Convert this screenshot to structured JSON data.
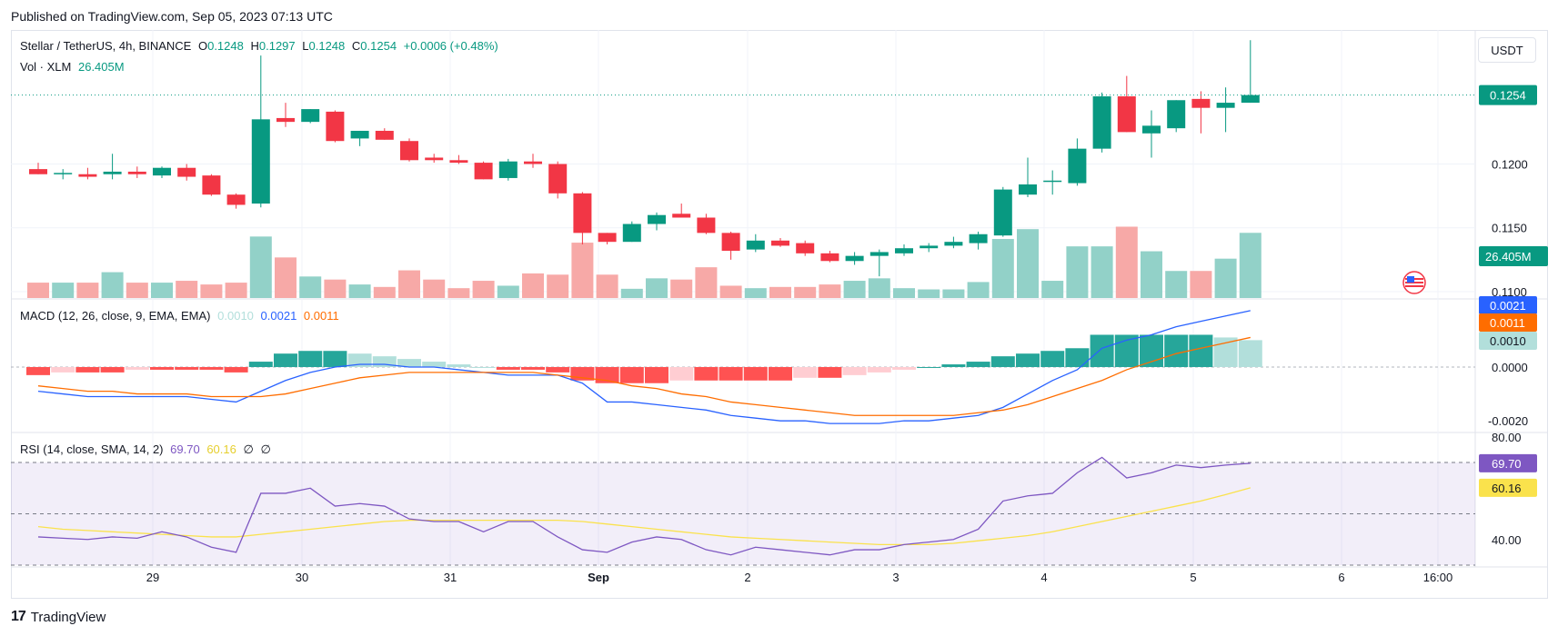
{
  "published": "Published on TradingView.com, Sep 05, 2023 07:13 UTC",
  "header": {
    "symbol": "Stellar / TetherUS, 4h, BINANCE",
    "o_label": "O",
    "o_value": "0.1248",
    "h_label": "H",
    "h_value": "0.1297",
    "l_label": "L",
    "l_value": "0.1248",
    "c_label": "C",
    "c_value": "0.1254",
    "change": "+0.0006 (+0.48%)",
    "vol_label": "Vol · XLM",
    "vol_value": "26.405M"
  },
  "currency_button": "USDT",
  "macd_legend": {
    "label": "MACD (12, 26, close, 9, EMA, EMA)",
    "hist": "0.0010",
    "macd": "0.0021",
    "signal": "0.0011"
  },
  "rsi_legend": {
    "label": "RSI (14, close, SMA, 14, 2)",
    "rsi": "69.70",
    "sma": "60.16",
    "extra1": "∅",
    "extra2": "∅"
  },
  "footer": {
    "brand": "TradingView",
    "logo": "TV-logo-icon"
  },
  "colors": {
    "up": "#089981",
    "down": "#f23645",
    "up_vol": "#92d1c8",
    "down_vol": "#f7a9a7",
    "macd_line": "#2962ff",
    "signal_line": "#ff6d00",
    "rsi_line": "#7e57c2",
    "rsi_sma": "#fae24c"
  },
  "chart_data": [
    {
      "type": "candlestick",
      "title": "Stellar / TetherUS, 4h, BINANCE",
      "y_axis_labels": [
        "0.1200",
        "0.1150",
        "0.1100"
      ],
      "ylim": [
        0.1095,
        0.1305
      ],
      "last_price_label": "0.1254",
      "volume_label": "26.405M",
      "x_axis_labels": [
        "29",
        "30",
        "31",
        "Sep",
        "2",
        "3",
        "4",
        "5",
        "6",
        "16:00"
      ],
      "candles": [
        {
          "o": 0.1196,
          "h": 0.1201,
          "l": 0.1192,
          "c": 0.1192
        },
        {
          "o": 0.1193,
          "h": 0.1196,
          "l": 0.1188,
          "c": 0.1193
        },
        {
          "o": 0.1192,
          "h": 0.1197,
          "l": 0.1188,
          "c": 0.119
        },
        {
          "o": 0.1192,
          "h": 0.1208,
          "l": 0.1188,
          "c": 0.1194
        },
        {
          "o": 0.1194,
          "h": 0.1198,
          "l": 0.1189,
          "c": 0.1192
        },
        {
          "o": 0.1191,
          "h": 0.1198,
          "l": 0.1189,
          "c": 0.1197
        },
        {
          "o": 0.1197,
          "h": 0.12,
          "l": 0.1187,
          "c": 0.119
        },
        {
          "o": 0.1191,
          "h": 0.1192,
          "l": 0.1175,
          "c": 0.1176
        },
        {
          "o": 0.1176,
          "h": 0.1177,
          "l": 0.1165,
          "c": 0.1168
        },
        {
          "o": 0.1169,
          "h": 0.1285,
          "l": 0.1166,
          "c": 0.1235
        },
        {
          "o": 0.1236,
          "h": 0.1248,
          "l": 0.1229,
          "c": 0.1233
        },
        {
          "o": 0.1233,
          "h": 0.1243,
          "l": 0.1232,
          "c": 0.1243
        },
        {
          "o": 0.1241,
          "h": 0.1242,
          "l": 0.1217,
          "c": 0.1218
        },
        {
          "o": 0.122,
          "h": 0.1226,
          "l": 0.1214,
          "c": 0.1226
        },
        {
          "o": 0.1226,
          "h": 0.1228,
          "l": 0.1219,
          "c": 0.1219
        },
        {
          "o": 0.1218,
          "h": 0.122,
          "l": 0.1202,
          "c": 0.1203
        },
        {
          "o": 0.1205,
          "h": 0.1208,
          "l": 0.1201,
          "c": 0.1203
        },
        {
          "o": 0.1203,
          "h": 0.1207,
          "l": 0.12,
          "c": 0.1201
        },
        {
          "o": 0.1201,
          "h": 0.1202,
          "l": 0.1188,
          "c": 0.1188
        },
        {
          "o": 0.1189,
          "h": 0.1204,
          "l": 0.1187,
          "c": 0.1202
        },
        {
          "o": 0.1202,
          "h": 0.1208,
          "l": 0.1197,
          "c": 0.12
        },
        {
          "o": 0.12,
          "h": 0.1202,
          "l": 0.1173,
          "c": 0.1177
        },
        {
          "o": 0.1177,
          "h": 0.1178,
          "l": 0.1137,
          "c": 0.1146
        },
        {
          "o": 0.1146,
          "h": 0.1146,
          "l": 0.1137,
          "c": 0.1139
        },
        {
          "o": 0.1139,
          "h": 0.1155,
          "l": 0.1139,
          "c": 0.1153
        },
        {
          "o": 0.1153,
          "h": 0.1162,
          "l": 0.1148,
          "c": 0.116
        },
        {
          "o": 0.1161,
          "h": 0.1169,
          "l": 0.1158,
          "c": 0.1158
        },
        {
          "o": 0.1158,
          "h": 0.1161,
          "l": 0.1145,
          "c": 0.1146
        },
        {
          "o": 0.1146,
          "h": 0.1147,
          "l": 0.1125,
          "c": 0.1132
        },
        {
          "o": 0.1133,
          "h": 0.1145,
          "l": 0.1131,
          "c": 0.114
        },
        {
          "o": 0.114,
          "h": 0.1142,
          "l": 0.1135,
          "c": 0.1136
        },
        {
          "o": 0.1138,
          "h": 0.114,
          "l": 0.1128,
          "c": 0.113
        },
        {
          "o": 0.113,
          "h": 0.1132,
          "l": 0.1123,
          "c": 0.1124
        },
        {
          "o": 0.1124,
          "h": 0.1131,
          "l": 0.1121,
          "c": 0.1128
        },
        {
          "o": 0.1128,
          "h": 0.1133,
          "l": 0.1112,
          "c": 0.1131
        },
        {
          "o": 0.113,
          "h": 0.1137,
          "l": 0.1128,
          "c": 0.1134
        },
        {
          "o": 0.1134,
          "h": 0.1138,
          "l": 0.1131,
          "c": 0.1136
        },
        {
          "o": 0.1136,
          "h": 0.1143,
          "l": 0.1134,
          "c": 0.1139
        },
        {
          "o": 0.1138,
          "h": 0.1147,
          "l": 0.1133,
          "c": 0.1145
        },
        {
          "o": 0.1144,
          "h": 0.1182,
          "l": 0.1143,
          "c": 0.118
        },
        {
          "o": 0.1176,
          "h": 0.1205,
          "l": 0.1174,
          "c": 0.1184
        },
        {
          "o": 0.1186,
          "h": 0.1195,
          "l": 0.1176,
          "c": 0.1187
        },
        {
          "o": 0.1185,
          "h": 0.122,
          "l": 0.1183,
          "c": 0.1212
        },
        {
          "o": 0.1212,
          "h": 0.1256,
          "l": 0.1209,
          "c": 0.1253
        },
        {
          "o": 0.1253,
          "h": 0.1269,
          "l": 0.1225,
          "c": 0.1225
        },
        {
          "o": 0.1224,
          "h": 0.1242,
          "l": 0.1205,
          "c": 0.123
        },
        {
          "o": 0.1228,
          "h": 0.125,
          "l": 0.1225,
          "c": 0.125
        },
        {
          "o": 0.1251,
          "h": 0.1257,
          "l": 0.1224,
          "c": 0.1244
        },
        {
          "o": 0.1244,
          "h": 0.126,
          "l": 0.1225,
          "c": 0.1248
        },
        {
          "o": 0.1248,
          "h": 0.1297,
          "l": 0.1248,
          "c": 0.1254
        }
      ],
      "volume_relative": [
        0.25,
        0.25,
        0.25,
        0.42,
        0.25,
        0.25,
        0.28,
        0.22,
        0.25,
        1.0,
        0.66,
        0.35,
        0.3,
        0.22,
        0.18,
        0.45,
        0.3,
        0.16,
        0.28,
        0.2,
        0.4,
        0.38,
        0.9,
        0.38,
        0.15,
        0.32,
        0.3,
        0.5,
        0.2,
        0.16,
        0.18,
        0.18,
        0.22,
        0.28,
        0.32,
        0.16,
        0.14,
        0.14,
        0.26,
        0.96,
        1.12,
        0.28,
        0.84,
        0.84,
        1.16,
        0.76,
        0.44,
        0.44,
        0.64,
        1.06
      ]
    },
    {
      "type": "line",
      "title": "MACD (12, 26, close, 9, EMA, EMA)",
      "y_axis_labels": [
        "0.0021",
        "0.0011",
        "0.0010",
        "0.0000",
        "-0.0020"
      ],
      "ylim": [
        -0.0024,
        0.0025
      ],
      "series": [
        {
          "name": "MACD",
          "values": [
            -0.0009,
            -0.001,
            -0.0011,
            -0.0011,
            -0.0011,
            -0.0011,
            -0.0011,
            -0.0012,
            -0.0013,
            -0.0009,
            -0.0005,
            -0.0002,
            0.0,
            0.0001,
            0.0001,
            0.0,
            0.0,
            -0.0001,
            -0.0002,
            -0.0003,
            -0.0003,
            -0.0003,
            -0.0006,
            -0.0013,
            -0.0013,
            -0.0014,
            -0.0015,
            -0.0016,
            -0.0018,
            -0.0019,
            -0.002,
            -0.002,
            -0.0021,
            -0.0021,
            -0.0021,
            -0.002,
            -0.002,
            -0.0019,
            -0.0018,
            -0.0015,
            -0.001,
            -0.0005,
            -0.0001,
            0.0007,
            0.001,
            0.0012,
            0.0015,
            0.0017,
            0.0019,
            0.0021
          ]
        },
        {
          "name": "Signal",
          "values": [
            -0.0007,
            -0.0008,
            -0.0009,
            -0.0009,
            -0.001,
            -0.001,
            -0.001,
            -0.0011,
            -0.0011,
            -0.0011,
            -0.001,
            -0.0008,
            -0.0006,
            -0.0004,
            -0.0003,
            -0.0002,
            -0.0002,
            -0.0002,
            -0.0002,
            -0.0002,
            -0.0002,
            -0.0003,
            -0.0004,
            -0.0005,
            -0.0007,
            -0.0008,
            -0.001,
            -0.0011,
            -0.0013,
            -0.0014,
            -0.0015,
            -0.0016,
            -0.0017,
            -0.0018,
            -0.0018,
            -0.0018,
            -0.0018,
            -0.0018,
            -0.0017,
            -0.0016,
            -0.0014,
            -0.0011,
            -0.0008,
            -0.0005,
            -0.0001,
            0.0002,
            0.0005,
            0.0007,
            0.0009,
            0.0011
          ]
        },
        {
          "name": "Histogram",
          "values": [
            -0.0003,
            -0.0002,
            -0.0002,
            -0.0002,
            -0.0001,
            -0.0001,
            -0.0001,
            -0.0001,
            -0.0002,
            0.0002,
            0.0005,
            0.0006,
            0.0006,
            0.0005,
            0.0004,
            0.0003,
            0.0002,
            0.0001,
            0.0,
            -0.0001,
            -0.0001,
            -0.0002,
            -0.0005,
            -0.0006,
            -0.0006,
            -0.0006,
            -0.0005,
            -0.0005,
            -0.0005,
            -0.0005,
            -0.0005,
            -0.0004,
            -0.0004,
            -0.0003,
            -0.0002,
            -0.0001,
            0.0,
            0.0001,
            0.0002,
            0.0004,
            0.0005,
            0.0006,
            0.0007,
            0.0012,
            0.0012,
            0.0012,
            0.0012,
            0.0012,
            0.0011,
            0.001
          ]
        }
      ]
    },
    {
      "type": "line",
      "title": "RSI (14, close, SMA, 14, 2)",
      "y_axis_labels": [
        "80.00",
        "69.70",
        "60.16",
        "40.00"
      ],
      "ylim": [
        30,
        81
      ],
      "bands": [
        30,
        50,
        70
      ],
      "series": [
        {
          "name": "RSI",
          "values": [
            41,
            40.5,
            40,
            41,
            40.5,
            43,
            41,
            37,
            35,
            58,
            58,
            60,
            53,
            54,
            53,
            48,
            47,
            47,
            43,
            47,
            47,
            41,
            36,
            35,
            39,
            41,
            40,
            36,
            34,
            37,
            36,
            35,
            34,
            36,
            36,
            38,
            39,
            40,
            44,
            55,
            57,
            58,
            66,
            72,
            64,
            66,
            69,
            68,
            69,
            69.7
          ]
        },
        {
          "name": "RSI-based MA",
          "values": [
            45,
            44,
            43.5,
            43,
            42.5,
            42,
            41.5,
            41,
            41,
            42,
            43,
            44,
            45,
            46,
            47,
            47.5,
            47.5,
            47.5,
            47.5,
            47.5,
            47.5,
            47.5,
            47,
            46,
            45,
            44,
            43,
            42,
            41,
            40.5,
            40,
            39.5,
            39,
            38.5,
            38,
            38,
            38,
            38.5,
            39.5,
            40.5,
            41.5,
            43,
            45,
            47,
            49,
            51,
            53,
            55,
            57.5,
            60.16
          ]
        }
      ]
    }
  ]
}
